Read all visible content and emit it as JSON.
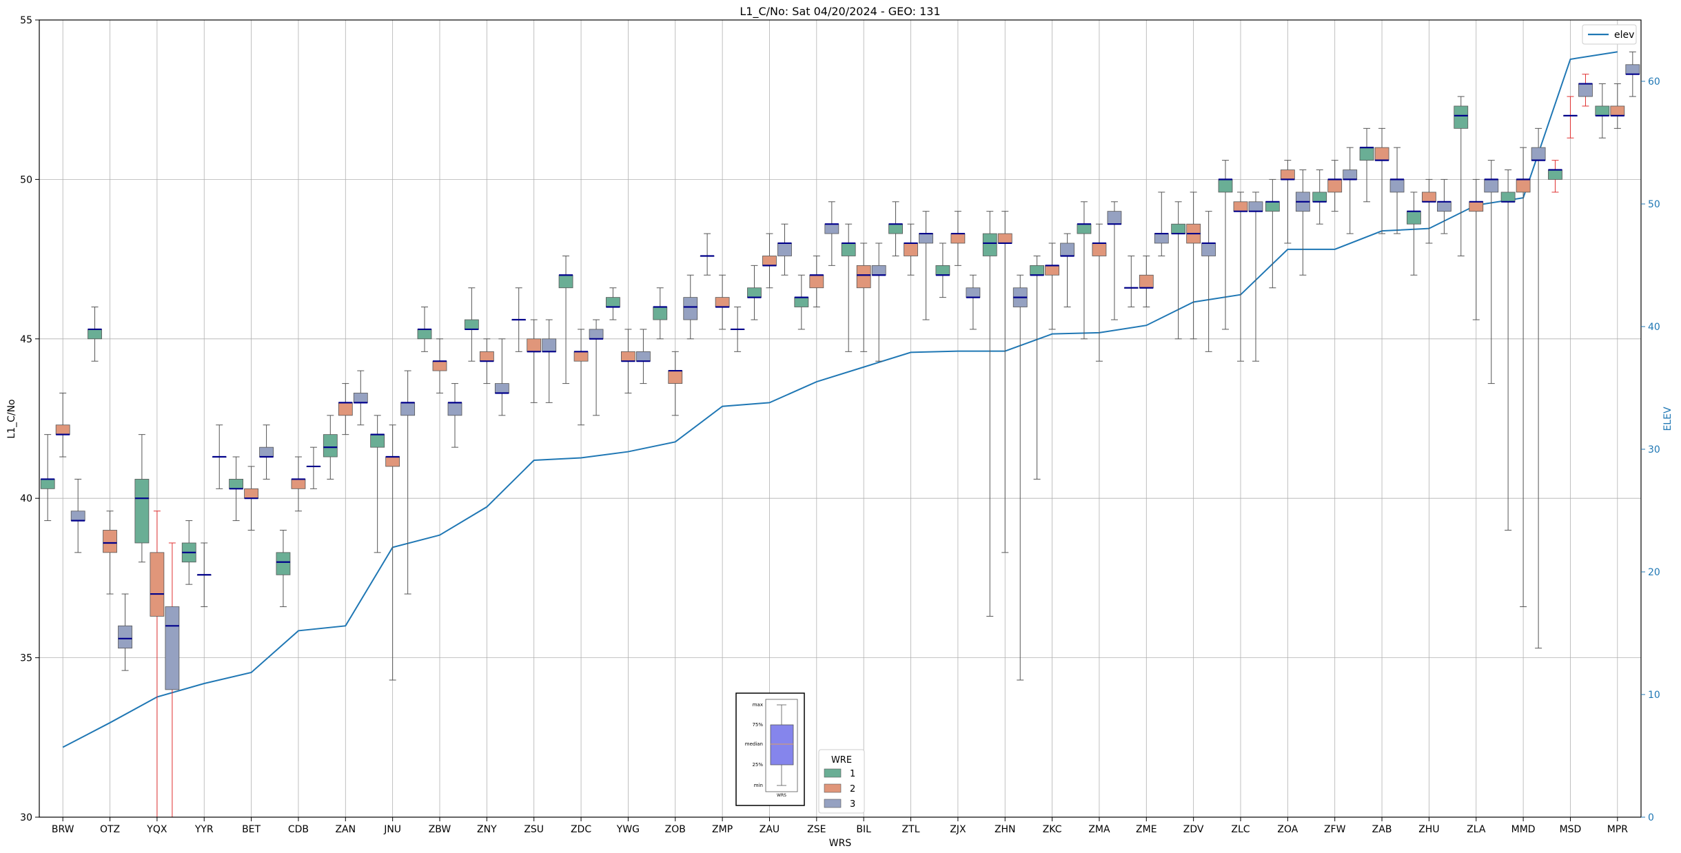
{
  "chart_data": {
    "type": "box",
    "title": "L1_C/No: Sat 04/20/2024 - GEO: 131",
    "xlabel": "WRS",
    "ylabel": "L1_C/No",
    "y2label": "ELEV",
    "ylim": [
      30,
      55
    ],
    "y2lim": [
      0,
      65
    ],
    "yticks": [
      30,
      35,
      40,
      45,
      50,
      55
    ],
    "y2ticks": [
      0,
      10,
      20,
      30,
      40,
      50,
      60
    ],
    "grid": true,
    "legend_placement": "top-right",
    "line_legend_label": "elev",
    "group_legend": {
      "title": "WRE",
      "entries": [
        "1",
        "2",
        "3"
      ]
    },
    "inset_labels": [
      "max",
      "75%",
      "median",
      "25%",
      "min",
      "WRS"
    ],
    "colors": {
      "wre1": "#6aae95",
      "wre2": "#e0967a",
      "wre3": "#95a1c1",
      "median": "#00008b",
      "elev": "#1f77b4",
      "whisker": "#555555",
      "whisker_alt": "#e03030",
      "inset_box": "#8585ec"
    },
    "categories": [
      "BRW",
      "OTZ",
      "YQX",
      "YYR",
      "BET",
      "CDB",
      "ZAN",
      "JNU",
      "ZBW",
      "ZNY",
      "ZSU",
      "ZDC",
      "YWG",
      "ZOB",
      "ZMP",
      "ZAU",
      "ZSE",
      "BIL",
      "ZTL",
      "ZJX",
      "ZHN",
      "ZKC",
      "ZMA",
      "ZME",
      "ZDV",
      "ZLC",
      "ZOA",
      "ZFW",
      "ZAB",
      "ZHU",
      "ZLA",
      "MMD",
      "MSD",
      "MPR"
    ],
    "elev": [
      5.7,
      7.7,
      9.8,
      10.9,
      11.8,
      15.2,
      15.6,
      22.0,
      23.0,
      25.3,
      29.1,
      29.3,
      29.8,
      30.6,
      33.5,
      33.8,
      35.5,
      36.7,
      37.9,
      38.0,
      38.0,
      39.4,
      39.5,
      40.1,
      42.0,
      42.6,
      46.3,
      46.3,
      47.8,
      48.0,
      49.9,
      50.5,
      61.8,
      62.4
    ],
    "boxes": [
      {
        "wrs": "BRW",
        "wre": 1,
        "min": 39.3,
        "q1": 40.3,
        "median": 40.6,
        "q3": 40.6,
        "max": 42.0
      },
      {
        "wrs": "BRW",
        "wre": 2,
        "min": 41.3,
        "q1": 42.0,
        "median": 42.0,
        "q3": 42.3,
        "max": 43.3
      },
      {
        "wrs": "BRW",
        "wre": 3,
        "min": 38.3,
        "q1": 39.3,
        "median": 39.3,
        "q3": 39.6,
        "max": 40.6
      },
      {
        "wrs": "OTZ",
        "wre": 1,
        "min": 44.3,
        "q1": 45.0,
        "median": 45.3,
        "q3": 45.3,
        "max": 46.0
      },
      {
        "wrs": "OTZ",
        "wre": 2,
        "min": 37.0,
        "q1": 38.3,
        "median": 38.6,
        "q3": 39.0,
        "max": 39.6
      },
      {
        "wrs": "OTZ",
        "wre": 3,
        "min": 34.6,
        "q1": 35.3,
        "median": 35.6,
        "q3": 36.0,
        "max": 37.0
      },
      {
        "wrs": "YQX",
        "wre": 1,
        "min": 38.0,
        "q1": 38.6,
        "median": 40.0,
        "q3": 40.6,
        "max": 42.0
      },
      {
        "wrs": "YQX",
        "wre": 2,
        "min": 30.0,
        "q1": 36.3,
        "median": 37.0,
        "q3": 38.3,
        "max": 39.6,
        "alt": true
      },
      {
        "wrs": "YQX",
        "wre": 3,
        "min": 30.0,
        "q1": 34.0,
        "median": 36.0,
        "q3": 36.6,
        "max": 38.6,
        "alt": true
      },
      {
        "wrs": "YYR",
        "wre": 1,
        "min": 37.3,
        "q1": 38.0,
        "median": 38.3,
        "q3": 38.6,
        "max": 39.3
      },
      {
        "wrs": "YYR",
        "wre": 2,
        "min": 36.6,
        "q1": 37.6,
        "median": 37.6,
        "q3": 37.6,
        "max": 38.6
      },
      {
        "wrs": "YYR",
        "wre": 3,
        "min": 40.3,
        "q1": 41.3,
        "median": 41.3,
        "q3": 41.3,
        "max": 42.3
      },
      {
        "wrs": "BET",
        "wre": 1,
        "min": 39.3,
        "q1": 40.3,
        "median": 40.3,
        "q3": 40.6,
        "max": 41.3
      },
      {
        "wrs": "BET",
        "wre": 2,
        "min": 39.0,
        "q1": 40.0,
        "median": 40.0,
        "q3": 40.3,
        "max": 41.0
      },
      {
        "wrs": "BET",
        "wre": 3,
        "min": 40.6,
        "q1": 41.3,
        "median": 41.3,
        "q3": 41.6,
        "max": 42.3
      },
      {
        "wrs": "CDB",
        "wre": 1,
        "min": 36.6,
        "q1": 37.6,
        "median": 38.0,
        "q3": 38.3,
        "max": 39.0
      },
      {
        "wrs": "CDB",
        "wre": 2,
        "min": 39.6,
        "q1": 40.3,
        "median": 40.6,
        "q3": 40.6,
        "max": 41.3
      },
      {
        "wrs": "CDB",
        "wre": 3,
        "min": 40.3,
        "q1": 41.0,
        "median": 41.0,
        "q3": 41.0,
        "max": 41.6
      },
      {
        "wrs": "ZAN",
        "wre": 1,
        "min": 40.6,
        "q1": 41.3,
        "median": 41.6,
        "q3": 42.0,
        "max": 42.6
      },
      {
        "wrs": "ZAN",
        "wre": 2,
        "min": 42.0,
        "q1": 42.6,
        "median": 43.0,
        "q3": 43.0,
        "max": 43.6
      },
      {
        "wrs": "ZAN",
        "wre": 3,
        "min": 42.3,
        "q1": 43.0,
        "median": 43.0,
        "q3": 43.3,
        "max": 44.0
      },
      {
        "wrs": "JNU",
        "wre": 1,
        "min": 38.3,
        "q1": 41.6,
        "median": 42.0,
        "q3": 42.0,
        "max": 42.6
      },
      {
        "wrs": "JNU",
        "wre": 2,
        "min": 34.3,
        "q1": 41.0,
        "median": 41.3,
        "q3": 41.3,
        "max": 42.3
      },
      {
        "wrs": "JNU",
        "wre": 3,
        "min": 37.0,
        "q1": 42.6,
        "median": 43.0,
        "q3": 43.0,
        "max": 44.0
      },
      {
        "wrs": "ZBW",
        "wre": 1,
        "min": 44.6,
        "q1": 45.0,
        "median": 45.3,
        "q3": 45.3,
        "max": 46.0
      },
      {
        "wrs": "ZBW",
        "wre": 2,
        "min": 43.3,
        "q1": 44.0,
        "median": 44.3,
        "q3": 44.3,
        "max": 45.0
      },
      {
        "wrs": "ZBW",
        "wre": 3,
        "min": 41.6,
        "q1": 42.6,
        "median": 43.0,
        "q3": 43.0,
        "max": 43.6
      },
      {
        "wrs": "ZNY",
        "wre": 1,
        "min": 44.3,
        "q1": 45.3,
        "median": 45.3,
        "q3": 45.6,
        "max": 46.6
      },
      {
        "wrs": "ZNY",
        "wre": 2,
        "min": 43.6,
        "q1": 44.3,
        "median": 44.3,
        "q3": 44.6,
        "max": 45.0
      },
      {
        "wrs": "ZNY",
        "wre": 3,
        "min": 42.6,
        "q1": 43.3,
        "median": 43.3,
        "q3": 43.6,
        "max": 45.0
      },
      {
        "wrs": "ZSU",
        "wre": 1,
        "min": 44.6,
        "q1": 45.6,
        "median": 45.6,
        "q3": 45.6,
        "max": 46.6
      },
      {
        "wrs": "ZSU",
        "wre": 2,
        "min": 43.0,
        "q1": 44.6,
        "median": 44.6,
        "q3": 45.0,
        "max": 45.6
      },
      {
        "wrs": "ZSU",
        "wre": 3,
        "min": 43.0,
        "q1": 44.6,
        "median": 44.6,
        "q3": 45.0,
        "max": 45.6
      },
      {
        "wrs": "ZDC",
        "wre": 1,
        "min": 43.6,
        "q1": 46.6,
        "median": 47.0,
        "q3": 47.0,
        "max": 47.6
      },
      {
        "wrs": "ZDC",
        "wre": 2,
        "min": 42.3,
        "q1": 44.3,
        "median": 44.6,
        "q3": 44.6,
        "max": 45.3
      },
      {
        "wrs": "ZDC",
        "wre": 3,
        "min": 42.6,
        "q1": 45.0,
        "median": 45.0,
        "q3": 45.3,
        "max": 45.6
      },
      {
        "wrs": "YWG",
        "wre": 1,
        "min": 45.6,
        "q1": 46.0,
        "median": 46.0,
        "q3": 46.3,
        "max": 46.6
      },
      {
        "wrs": "YWG",
        "wre": 2,
        "min": 43.3,
        "q1": 44.3,
        "median": 44.3,
        "q3": 44.6,
        "max": 45.3
      },
      {
        "wrs": "YWG",
        "wre": 3,
        "min": 43.6,
        "q1": 44.3,
        "median": 44.3,
        "q3": 44.6,
        "max": 45.3
      },
      {
        "wrs": "ZOB",
        "wre": 1,
        "min": 45.0,
        "q1": 45.6,
        "median": 46.0,
        "q3": 46.0,
        "max": 46.6
      },
      {
        "wrs": "ZOB",
        "wre": 2,
        "min": 42.6,
        "q1": 43.6,
        "median": 44.0,
        "q3": 44.0,
        "max": 44.6
      },
      {
        "wrs": "ZOB",
        "wre": 3,
        "min": 45.0,
        "q1": 45.6,
        "median": 46.0,
        "q3": 46.3,
        "max": 47.0
      },
      {
        "wrs": "ZMP",
        "wre": 1,
        "min": 47.0,
        "q1": 47.6,
        "median": 47.6,
        "q3": 47.6,
        "max": 48.3
      },
      {
        "wrs": "ZMP",
        "wre": 2,
        "min": 45.3,
        "q1": 46.0,
        "median": 46.0,
        "q3": 46.3,
        "max": 47.0
      },
      {
        "wrs": "ZMP",
        "wre": 3,
        "min": 44.6,
        "q1": 45.3,
        "median": 45.3,
        "q3": 45.3,
        "max": 46.0
      },
      {
        "wrs": "ZAU",
        "wre": 1,
        "min": 45.6,
        "q1": 46.3,
        "median": 46.3,
        "q3": 46.6,
        "max": 47.3
      },
      {
        "wrs": "ZAU",
        "wre": 2,
        "min": 46.6,
        "q1": 47.3,
        "median": 47.3,
        "q3": 47.6,
        "max": 48.3
      },
      {
        "wrs": "ZAU",
        "wre": 3,
        "min": 47.0,
        "q1": 47.6,
        "median": 48.0,
        "q3": 48.0,
        "max": 48.6
      },
      {
        "wrs": "ZSE",
        "wre": 1,
        "min": 45.3,
        "q1": 46.0,
        "median": 46.3,
        "q3": 46.3,
        "max": 47.0
      },
      {
        "wrs": "ZSE",
        "wre": 2,
        "min": 46.0,
        "q1": 46.6,
        "median": 47.0,
        "q3": 47.0,
        "max": 47.6
      },
      {
        "wrs": "ZSE",
        "wre": 3,
        "min": 47.3,
        "q1": 48.3,
        "median": 48.6,
        "q3": 48.6,
        "max": 49.3
      },
      {
        "wrs": "BIL",
        "wre": 1,
        "min": 44.6,
        "q1": 47.6,
        "median": 48.0,
        "q3": 48.0,
        "max": 48.6
      },
      {
        "wrs": "BIL",
        "wre": 2,
        "min": 44.6,
        "q1": 46.6,
        "median": 47.0,
        "q3": 47.3,
        "max": 48.0
      },
      {
        "wrs": "BIL",
        "wre": 3,
        "min": 44.3,
        "q1": 47.0,
        "median": 47.0,
        "q3": 47.3,
        "max": 48.0
      },
      {
        "wrs": "ZTL",
        "wre": 1,
        "min": 47.6,
        "q1": 48.3,
        "median": 48.6,
        "q3": 48.6,
        "max": 49.3
      },
      {
        "wrs": "ZTL",
        "wre": 2,
        "min": 47.0,
        "q1": 47.6,
        "median": 48.0,
        "q3": 48.0,
        "max": 48.6
      },
      {
        "wrs": "ZTL",
        "wre": 3,
        "min": 45.6,
        "q1": 48.0,
        "median": 48.3,
        "q3": 48.3,
        "max": 49.0
      },
      {
        "wrs": "ZJX",
        "wre": 1,
        "min": 46.3,
        "q1": 47.0,
        "median": 47.0,
        "q3": 47.3,
        "max": 48.0
      },
      {
        "wrs": "ZJX",
        "wre": 2,
        "min": 47.3,
        "q1": 48.0,
        "median": 48.3,
        "q3": 48.3,
        "max": 49.0
      },
      {
        "wrs": "ZJX",
        "wre": 3,
        "min": 45.3,
        "q1": 46.3,
        "median": 46.3,
        "q3": 46.6,
        "max": 47.0
      },
      {
        "wrs": "ZHN",
        "wre": 1,
        "min": 36.3,
        "q1": 47.6,
        "median": 48.0,
        "q3": 48.3,
        "max": 49.0
      },
      {
        "wrs": "ZHN",
        "wre": 2,
        "min": 38.3,
        "q1": 48.0,
        "median": 48.0,
        "q3": 48.3,
        "max": 49.0
      },
      {
        "wrs": "ZHN",
        "wre": 3,
        "min": 34.3,
        "q1": 46.0,
        "median": 46.3,
        "q3": 46.6,
        "max": 47.0
      },
      {
        "wrs": "ZKC",
        "wre": 1,
        "min": 40.6,
        "q1": 47.0,
        "median": 47.0,
        "q3": 47.3,
        "max": 47.6
      },
      {
        "wrs": "ZKC",
        "wre": 2,
        "min": 45.3,
        "q1": 47.0,
        "median": 47.3,
        "q3": 47.3,
        "max": 48.0
      },
      {
        "wrs": "ZKC",
        "wre": 3,
        "min": 46.0,
        "q1": 47.6,
        "median": 47.6,
        "q3": 48.0,
        "max": 48.3
      },
      {
        "wrs": "ZMA",
        "wre": 1,
        "min": 45.0,
        "q1": 48.3,
        "median": 48.6,
        "q3": 48.6,
        "max": 49.3
      },
      {
        "wrs": "ZMA",
        "wre": 2,
        "min": 44.3,
        "q1": 47.6,
        "median": 48.0,
        "q3": 48.0,
        "max": 48.6
      },
      {
        "wrs": "ZMA",
        "wre": 3,
        "min": 45.6,
        "q1": 48.6,
        "median": 48.6,
        "q3": 49.0,
        "max": 49.3
      },
      {
        "wrs": "ZME",
        "wre": 1,
        "min": 46.0,
        "q1": 46.6,
        "median": 46.6,
        "q3": 46.6,
        "max": 47.6
      },
      {
        "wrs": "ZME",
        "wre": 2,
        "min": 46.0,
        "q1": 46.6,
        "median": 46.6,
        "q3": 47.0,
        "max": 47.6
      },
      {
        "wrs": "ZME",
        "wre": 3,
        "min": 47.6,
        "q1": 48.0,
        "median": 48.3,
        "q3": 48.3,
        "max": 49.6
      },
      {
        "wrs": "ZDV",
        "wre": 1,
        "min": 45.0,
        "q1": 48.3,
        "median": 48.3,
        "q3": 48.6,
        "max": 49.3
      },
      {
        "wrs": "ZDV",
        "wre": 2,
        "min": 45.0,
        "q1": 48.0,
        "median": 48.3,
        "q3": 48.6,
        "max": 49.6
      },
      {
        "wrs": "ZDV",
        "wre": 3,
        "min": 44.6,
        "q1": 47.6,
        "median": 48.0,
        "q3": 48.0,
        "max": 49.0
      },
      {
        "wrs": "ZLC",
        "wre": 1,
        "min": 45.3,
        "q1": 49.6,
        "median": 50.0,
        "q3": 50.0,
        "max": 50.6
      },
      {
        "wrs": "ZLC",
        "wre": 2,
        "min": 44.3,
        "q1": 49.0,
        "median": 49.0,
        "q3": 49.3,
        "max": 49.6
      },
      {
        "wrs": "ZLC",
        "wre": 3,
        "min": 44.3,
        "q1": 49.0,
        "median": 49.0,
        "q3": 49.3,
        "max": 49.6
      },
      {
        "wrs": "ZOA",
        "wre": 1,
        "min": 46.6,
        "q1": 49.0,
        "median": 49.3,
        "q3": 49.3,
        "max": 50.0
      },
      {
        "wrs": "ZOA",
        "wre": 2,
        "min": 48.0,
        "q1": 50.0,
        "median": 50.0,
        "q3": 50.3,
        "max": 50.6
      },
      {
        "wrs": "ZOA",
        "wre": 3,
        "min": 47.0,
        "q1": 49.0,
        "median": 49.3,
        "q3": 49.6,
        "max": 50.3
      },
      {
        "wrs": "ZFW",
        "wre": 1,
        "min": 48.6,
        "q1": 49.3,
        "median": 49.3,
        "q3": 49.6,
        "max": 50.3
      },
      {
        "wrs": "ZFW",
        "wre": 2,
        "min": 49.0,
        "q1": 49.6,
        "median": 50.0,
        "q3": 50.0,
        "max": 50.6
      },
      {
        "wrs": "ZFW",
        "wre": 3,
        "min": 48.3,
        "q1": 50.0,
        "median": 50.0,
        "q3": 50.3,
        "max": 51.0
      },
      {
        "wrs": "ZAB",
        "wre": 1,
        "min": 49.3,
        "q1": 50.6,
        "median": 51.0,
        "q3": 51.0,
        "max": 51.6
      },
      {
        "wrs": "ZAB",
        "wre": 2,
        "min": 48.3,
        "q1": 50.6,
        "median": 50.6,
        "q3": 51.0,
        "max": 51.6
      },
      {
        "wrs": "ZAB",
        "wre": 3,
        "min": 48.3,
        "q1": 49.6,
        "median": 50.0,
        "q3": 50.0,
        "max": 51.0
      },
      {
        "wrs": "ZHU",
        "wre": 1,
        "min": 47.0,
        "q1": 48.6,
        "median": 49.0,
        "q3": 49.0,
        "max": 49.6
      },
      {
        "wrs": "ZHU",
        "wre": 2,
        "min": 48.0,
        "q1": 49.3,
        "median": 49.3,
        "q3": 49.6,
        "max": 50.0
      },
      {
        "wrs": "ZHU",
        "wre": 3,
        "min": 48.3,
        "q1": 49.0,
        "median": 49.3,
        "q3": 49.3,
        "max": 50.0
      },
      {
        "wrs": "ZLA",
        "wre": 1,
        "min": 47.6,
        "q1": 51.6,
        "median": 52.0,
        "q3": 52.3,
        "max": 52.6
      },
      {
        "wrs": "ZLA",
        "wre": 2,
        "min": 45.6,
        "q1": 49.0,
        "median": 49.3,
        "q3": 49.3,
        "max": 50.0
      },
      {
        "wrs": "ZLA",
        "wre": 3,
        "min": 43.6,
        "q1": 49.6,
        "median": 50.0,
        "q3": 50.0,
        "max": 50.6
      },
      {
        "wrs": "MMD",
        "wre": 1,
        "min": 39.0,
        "q1": 49.3,
        "median": 49.3,
        "q3": 49.6,
        "max": 50.3
      },
      {
        "wrs": "MMD",
        "wre": 2,
        "min": 36.6,
        "q1": 49.6,
        "median": 50.0,
        "q3": 50.0,
        "max": 51.0
      },
      {
        "wrs": "MMD",
        "wre": 3,
        "min": 35.3,
        "q1": 50.6,
        "median": 50.6,
        "q3": 51.0,
        "max": 51.6
      },
      {
        "wrs": "MSD",
        "wre": 1,
        "min": 49.6,
        "q1": 50.0,
        "median": 50.3,
        "q3": 50.3,
        "max": 50.6,
        "alt": true
      },
      {
        "wrs": "MSD",
        "wre": 2,
        "min": 51.3,
        "q1": 52.0,
        "median": 52.0,
        "q3": 52.0,
        "max": 52.6,
        "alt": true
      },
      {
        "wrs": "MSD",
        "wre": 3,
        "min": 52.3,
        "q1": 52.6,
        "median": 53.0,
        "q3": 53.0,
        "max": 53.3,
        "alt": true
      },
      {
        "wrs": "MPR",
        "wre": 1,
        "min": 51.3,
        "q1": 52.0,
        "median": 52.0,
        "q3": 52.3,
        "max": 53.0
      },
      {
        "wrs": "MPR",
        "wre": 2,
        "min": 51.6,
        "q1": 52.0,
        "median": 52.0,
        "q3": 52.3,
        "max": 53.0
      },
      {
        "wrs": "MPR",
        "wre": 3,
        "min": 52.6,
        "q1": 53.3,
        "median": 53.3,
        "q3": 53.6,
        "max": 54.0
      }
    ]
  }
}
